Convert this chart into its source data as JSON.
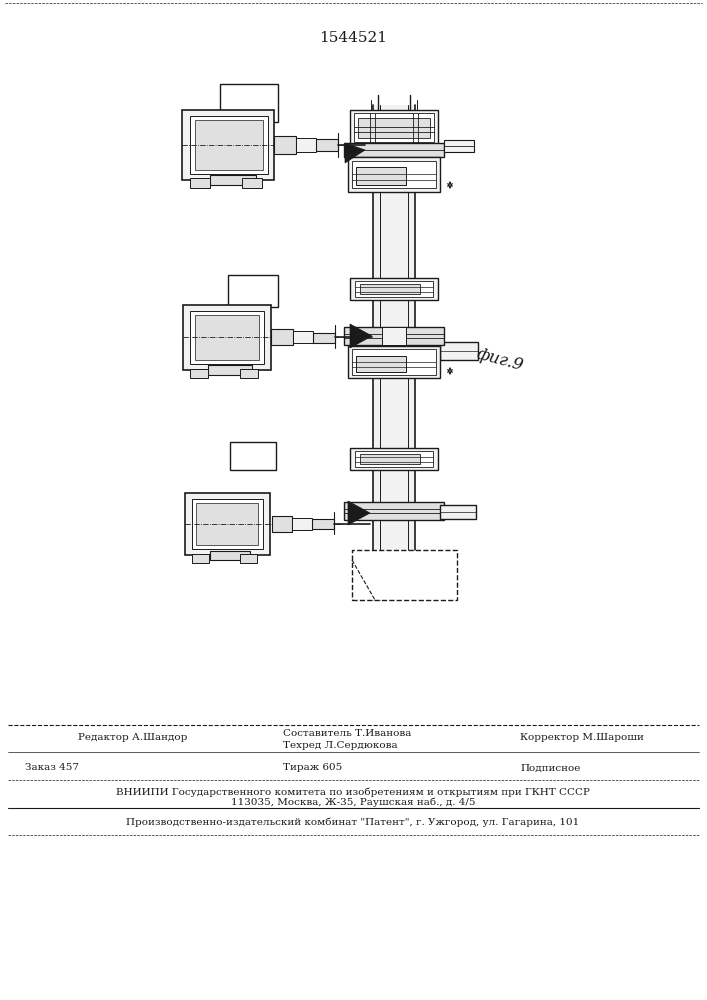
{
  "patent_number": "1544521",
  "fig_label": "фиг.9",
  "bg_color": "#ffffff",
  "line_color": "#1a1a1a",
  "footer_line1_left": "Редактор А.Шандор",
  "footer_line1_c1": "Составитель Т.Иванова",
  "footer_line1_c2": "Техред Л.Сердюкова",
  "footer_line1_right": "Корректор М.Шароши",
  "footer_line2_left": "Заказ 457",
  "footer_line2_center": "Тираж 605",
  "footer_line2_right": "Подписное",
  "footer_line3": "ВНИИПИ Государственного комитета по изобретениям и открытиям при ГКНТ СССР",
  "footer_line4": "113035, Москва, Ж-35, Раушская наб., д. 4/5",
  "footer_line5": "Производственно-издательский комбинат \"Патент\", г. Ужгород, ул. Гагарина, 101"
}
